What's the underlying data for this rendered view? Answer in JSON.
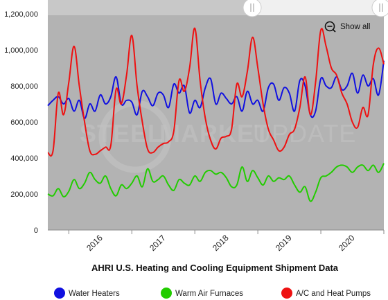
{
  "chart_data": {
    "type": "line",
    "title": "AHRI U.S. Heating and Cooling Equipment Shipment Data",
    "x_ticks": [
      "2016",
      "2017",
      "2018",
      "2019",
      "2020"
    ],
    "x_start": "2015-09",
    "x_months": [
      "2015-09",
      "2015-10",
      "2015-11",
      "2015-12",
      "2016-01",
      "2016-02",
      "2016-03",
      "2016-04",
      "2016-05",
      "2016-06",
      "2016-07",
      "2016-08",
      "2016-09",
      "2016-10",
      "2016-11",
      "2016-12",
      "2017-01",
      "2017-02",
      "2017-03",
      "2017-04",
      "2017-05",
      "2017-06",
      "2017-07",
      "2017-08",
      "2017-09",
      "2017-10",
      "2017-11",
      "2017-12",
      "2018-01",
      "2018-02",
      "2018-03",
      "2018-04",
      "2018-05",
      "2018-06",
      "2018-07",
      "2018-08",
      "2018-09",
      "2018-10",
      "2018-11",
      "2018-12",
      "2019-01",
      "2019-02",
      "2019-03",
      "2019-04",
      "2019-05",
      "2019-06",
      "2019-07",
      "2019-08",
      "2019-09",
      "2019-10",
      "2019-11",
      "2019-12",
      "2020-01",
      "2020-02",
      "2020-03",
      "2020-04",
      "2020-05",
      "2020-06",
      "2020-07",
      "2020-08",
      "2020-09",
      "2020-10",
      "2020-11",
      "2020-12",
      "2021-01"
    ],
    "y_ticks": [
      "0",
      "200,000",
      "400,000",
      "600,000",
      "800,000",
      "1,000,000",
      "1,200,000"
    ],
    "ylim": [
      0,
      1200000
    ],
    "grid": false,
    "legend_position": "bottom",
    "series": [
      {
        "name": "Water Heaters",
        "color": "#1010e0",
        "values": [
          690000,
          720000,
          740000,
          700000,
          730000,
          660000,
          720000,
          620000,
          700000,
          660000,
          750000,
          700000,
          740000,
          850000,
          700000,
          720000,
          710000,
          640000,
          770000,
          740000,
          690000,
          760000,
          750000,
          680000,
          810000,
          760000,
          800000,
          650000,
          720000,
          680000,
          790000,
          840000,
          700000,
          760000,
          730000,
          700000,
          740000,
          660000,
          770000,
          700000,
          720000,
          660000,
          790000,
          810000,
          720000,
          790000,
          760000,
          660000,
          830000,
          800000,
          640000,
          660000,
          840000,
          800000,
          790000,
          850000,
          780000,
          800000,
          870000,
          760000,
          860000,
          800000,
          840000,
          750000,
          940000
        ]
      },
      {
        "name": "Warm Air Furnaces",
        "color": "#22cc00",
        "values": [
          200000,
          190000,
          230000,
          185000,
          215000,
          280000,
          230000,
          260000,
          320000,
          280000,
          260000,
          300000,
          230000,
          190000,
          250000,
          230000,
          260000,
          300000,
          240000,
          340000,
          270000,
          280000,
          300000,
          250000,
          220000,
          280000,
          260000,
          250000,
          300000,
          270000,
          320000,
          330000,
          310000,
          320000,
          290000,
          240000,
          250000,
          350000,
          270000,
          330000,
          290000,
          250000,
          300000,
          270000,
          290000,
          280000,
          300000,
          250000,
          210000,
          240000,
          160000,
          210000,
          290000,
          300000,
          320000,
          350000,
          360000,
          350000,
          320000,
          350000,
          360000,
          330000,
          360000,
          320000,
          370000
        ]
      },
      {
        "name": "A/C and Heat Pumps",
        "color": "#ee1111",
        "values": [
          430000,
          440000,
          760000,
          640000,
          820000,
          1020000,
          800000,
          600000,
          440000,
          420000,
          440000,
          460000,
          470000,
          780000,
          700000,
          860000,
          1080000,
          800000,
          600000,
          450000,
          430000,
          460000,
          480000,
          490000,
          550000,
          830000,
          770000,
          900000,
          1120000,
          830000,
          620000,
          500000,
          450000,
          510000,
          520000,
          560000,
          810000,
          740000,
          880000,
          1070000,
          900000,
          700000,
          560000,
          500000,
          440000,
          460000,
          530000,
          560000,
          680000,
          850000,
          640000,
          820000,
          1110000,
          1020000,
          900000,
          860000,
          760000,
          700000,
          600000,
          570000,
          680000,
          640000,
          920000,
          1010000,
          920000
        ]
      }
    ]
  },
  "watermark": {
    "part1": "STEEL",
    "part2": "MARKET",
    "part3": "UPDATE"
  },
  "controls": {
    "show_all_label": "Show all",
    "zoom_icon": "zoom-out-icon",
    "handle_icon": "drag-handle-icon"
  },
  "colors": {
    "plot_background": "#b3b3b3",
    "navigator_background": "#f0f0f0"
  }
}
